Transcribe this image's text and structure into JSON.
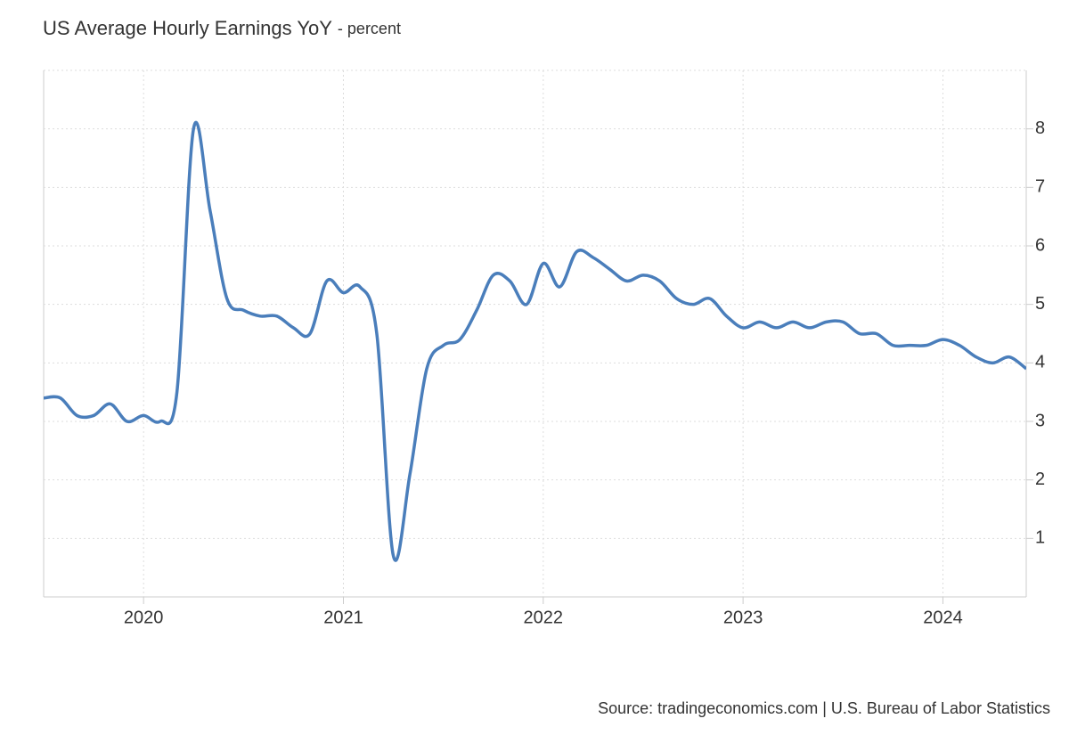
{
  "chart_data": {
    "type": "line",
    "title": "US Average Hourly Earnings YoY",
    "subtitle": "- percent",
    "source": "Source: tradingeconomics.com | U.S. Bureau of Labor Statistics",
    "x": [
      2019.5,
      2019.583,
      2019.667,
      2019.75,
      2019.833,
      2019.917,
      2020,
      2020.083,
      2020.167,
      2020.25,
      2020.333,
      2020.417,
      2020.5,
      2020.583,
      2020.667,
      2020.75,
      2020.833,
      2020.917,
      2021,
      2021.083,
      2021.167,
      2021.25,
      2021.333,
      2021.417,
      2021.5,
      2021.583,
      2021.667,
      2021.75,
      2021.833,
      2021.917,
      2022,
      2022.083,
      2022.167,
      2022.25,
      2022.333,
      2022.417,
      2022.5,
      2022.583,
      2022.667,
      2022.75,
      2022.833,
      2022.917,
      2023,
      2023.083,
      2023.167,
      2023.25,
      2023.333,
      2023.417,
      2023.5,
      2023.583,
      2023.667,
      2023.75,
      2023.833,
      2023.917,
      2024,
      2024.083,
      2024.167,
      2024.25,
      2024.333,
      2024.417
    ],
    "series": [
      {
        "name": "US Average Hourly Earnings YoY",
        "color": "#4a7ebb",
        "values": [
          3.4,
          3.4,
          3.1,
          3.1,
          3.3,
          3.0,
          3.1,
          3.0,
          3.5,
          8.0,
          6.6,
          5.1,
          4.9,
          4.8,
          4.8,
          4.6,
          4.5,
          5.4,
          5.2,
          5.3,
          4.5,
          0.7,
          2.1,
          3.9,
          4.3,
          4.4,
          4.9,
          5.5,
          5.4,
          5.0,
          5.7,
          5.3,
          5.9,
          5.8,
          5.6,
          5.4,
          5.5,
          5.4,
          5.1,
          5.0,
          5.1,
          4.8,
          4.6,
          4.7,
          4.6,
          4.7,
          4.6,
          4.7,
          4.7,
          4.5,
          4.5,
          4.3,
          4.3,
          4.3,
          4.4,
          4.3,
          4.1,
          4.0,
          4.1,
          3.9
        ]
      }
    ],
    "xlim": [
      2019.5,
      2024.417
    ],
    "xticks": [
      2020,
      2021,
      2022,
      2023,
      2024
    ],
    "ylim": [
      0,
      9
    ],
    "yticks": [
      1,
      2,
      3,
      4,
      5,
      6,
      7,
      8
    ],
    "grid": true
  }
}
